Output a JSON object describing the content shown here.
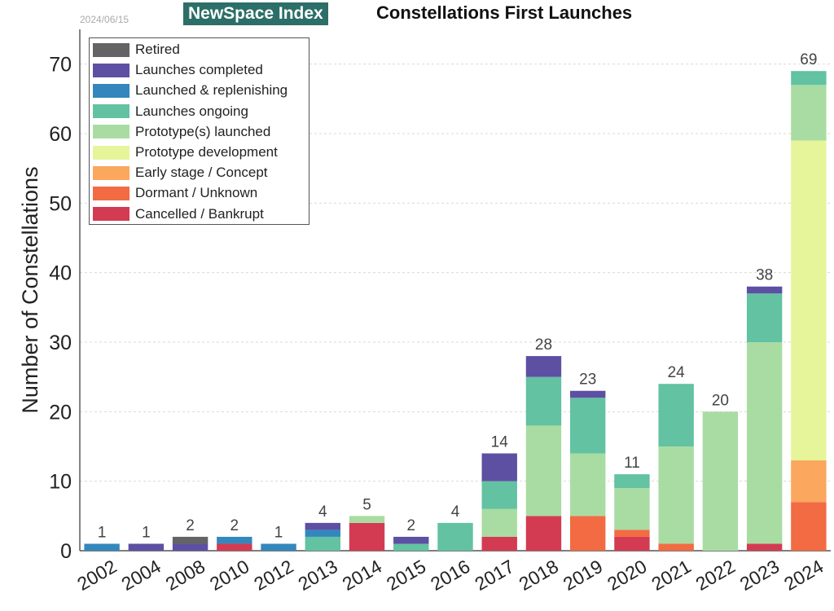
{
  "header": {
    "date": "2024/06/15",
    "brand": "NewSpace Index",
    "title": "Constellations First Launches"
  },
  "chart_data": {
    "type": "bar",
    "stacked": true,
    "title": "Constellations First Launches",
    "xlabel": "",
    "ylabel": "Number of Constellations",
    "ylim": [
      0,
      75
    ],
    "yticks": [
      0,
      10,
      20,
      30,
      40,
      50,
      60,
      70
    ],
    "grid": true,
    "legend_position": "top-left",
    "categories": [
      "2002",
      "2004",
      "2008",
      "2010",
      "2012",
      "2013",
      "2014",
      "2015",
      "2016",
      "2017",
      "2018",
      "2019",
      "2020",
      "2021",
      "2022",
      "2023",
      "2024"
    ],
    "totals": [
      1,
      1,
      2,
      2,
      1,
      4,
      5,
      2,
      4,
      14,
      28,
      23,
      11,
      24,
      20,
      38,
      69
    ],
    "series": [
      {
        "name": "Cancelled / Bankrupt",
        "color": "#d33b52",
        "values": [
          0,
          0,
          0,
          1,
          0,
          0,
          4,
          0,
          0,
          2,
          5,
          0,
          2,
          0,
          0,
          1,
          0
        ]
      },
      {
        "name": "Dormant / Unknown",
        "color": "#f26b43",
        "values": [
          0,
          0,
          0,
          0,
          0,
          0,
          0,
          0,
          0,
          0,
          0,
          5,
          1,
          1,
          0,
          0,
          7
        ]
      },
      {
        "name": "Early stage / Concept",
        "color": "#fba75e",
        "values": [
          0,
          0,
          0,
          0,
          0,
          0,
          0,
          0,
          0,
          0,
          0,
          0,
          0,
          0,
          0,
          0,
          6
        ]
      },
      {
        "name": "Prototype development",
        "color": "#e6f59a",
        "values": [
          0,
          0,
          0,
          0,
          0,
          0,
          0,
          0,
          0,
          0,
          0,
          0,
          0,
          0,
          0,
          0,
          46
        ]
      },
      {
        "name": "Prototype(s) launched",
        "color": "#a9dca2",
        "values": [
          0,
          0,
          0,
          0,
          0,
          0,
          1,
          0,
          0,
          4,
          13,
          9,
          6,
          14,
          20,
          29,
          8
        ]
      },
      {
        "name": "Launches ongoing",
        "color": "#62c2a2",
        "values": [
          0,
          0,
          0,
          0,
          0,
          2,
          0,
          1,
          4,
          4,
          7,
          8,
          2,
          9,
          0,
          7,
          2
        ]
      },
      {
        "name": "Launched & replenishing",
        "color": "#3387bc",
        "values": [
          1,
          0,
          0,
          1,
          1,
          1,
          0,
          0,
          0,
          0,
          0,
          0,
          0,
          0,
          0,
          0,
          0
        ]
      },
      {
        "name": "Launches completed",
        "color": "#5d50a3",
        "values": [
          0,
          1,
          1,
          0,
          0,
          1,
          0,
          1,
          0,
          4,
          3,
          1,
          0,
          0,
          0,
          1,
          0
        ]
      },
      {
        "name": "Retired",
        "color": "#646464",
        "values": [
          0,
          0,
          1,
          0,
          0,
          0,
          0,
          0,
          0,
          0,
          0,
          0,
          0,
          0,
          0,
          0,
          0
        ]
      }
    ],
    "legend": [
      {
        "name": "Retired",
        "color": "#646464"
      },
      {
        "name": "Launches completed",
        "color": "#5d50a3"
      },
      {
        "name": "Launched & replenishing",
        "color": "#3387bc"
      },
      {
        "name": "Launches ongoing",
        "color": "#62c2a2"
      },
      {
        "name": "Prototype(s) launched",
        "color": "#a9dca2"
      },
      {
        "name": "Prototype development",
        "color": "#e6f59a"
      },
      {
        "name": "Early stage / Concept",
        "color": "#fba75e"
      },
      {
        "name": "Dormant / Unknown",
        "color": "#f26b43"
      },
      {
        "name": "Cancelled / Bankrupt",
        "color": "#d33b52"
      }
    ]
  }
}
